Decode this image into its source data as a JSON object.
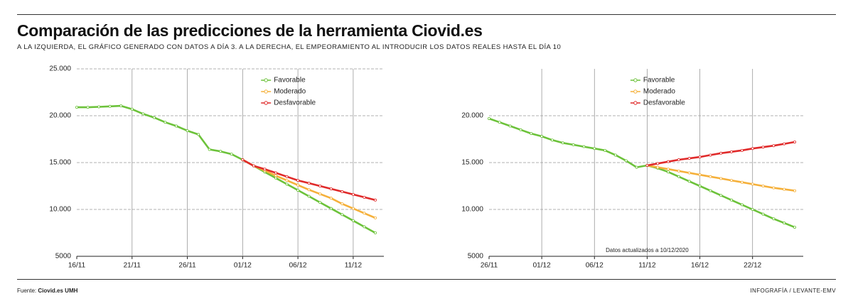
{
  "header": {
    "title": "Comparación de las predicciones de la herramienta Ciovid.es",
    "subtitle": "A LA IZQUIERDA, EL GRÁFICO GENERADO CON DATOS A DÍA 3. A LA DERECHA, EL EMPEORAMIENTO AL INTRODUCIR LOS DATOS REALES HASTA EL DÍA 10"
  },
  "footer": {
    "source_label": "Fuente:",
    "source": "Ciovid.es UMH",
    "credit": "INFOGRAFÍA / LEVANTE-EMV"
  },
  "chart_data": [
    {
      "type": "line",
      "categories": [
        "16/11",
        null,
        null,
        null,
        null,
        "21/11",
        null,
        null,
        null,
        null,
        "26/11",
        null,
        null,
        null,
        null,
        "01/12",
        null,
        null,
        null,
        null,
        "06/12",
        null,
        null,
        null,
        null,
        "11/12",
        null,
        null
      ],
      "ylim": [
        5000,
        25000
      ],
      "yticks": [
        5000,
        {
          "value": 10000,
          "label": "10.000"
        },
        {
          "value": 15000,
          "label": "15.000"
        },
        {
          "value": 20000,
          "label": "20.000"
        },
        {
          "value": 25000,
          "label": "25.000"
        }
      ],
      "grid": true,
      "legend": "upper-center",
      "series": [
        {
          "name": "Favorable",
          "color": "#6cc23a",
          "values": [
            20900,
            20900,
            20950,
            21000,
            21050,
            20700,
            20200,
            19800,
            19300,
            18900,
            18400,
            18000,
            16400,
            16200,
            15900,
            15300,
            14650,
            14000,
            13350,
            12700,
            12050,
            11400,
            10750,
            10100,
            9450,
            8800,
            8150,
            7500
          ]
        },
        {
          "name": "Moderado",
          "color": "#f5b03a",
          "values": [
            null,
            null,
            null,
            null,
            null,
            null,
            null,
            null,
            null,
            null,
            null,
            null,
            null,
            null,
            null,
            15300,
            14650,
            14150,
            13600,
            13100,
            12600,
            12100,
            11650,
            11200,
            10600,
            10100,
            9600,
            9100
          ]
        },
        {
          "name": "Desfavorable",
          "color": "#e02a2a",
          "values": [
            null,
            null,
            null,
            null,
            null,
            null,
            null,
            null,
            null,
            null,
            null,
            null,
            null,
            null,
            null,
            15300,
            14650,
            14300,
            13900,
            13500,
            13100,
            12800,
            12500,
            12200,
            11900,
            11600,
            11300,
            11000
          ]
        }
      ]
    },
    {
      "type": "line",
      "categories": [
        "26/11",
        null,
        null,
        null,
        null,
        "01/12",
        null,
        null,
        null,
        null,
        "06/12",
        null,
        null,
        null,
        null,
        "11/12",
        null,
        null,
        null,
        null,
        "16/12",
        null,
        null,
        null,
        null,
        "22/12",
        null,
        null,
        null,
        null
      ],
      "ylim": [
        5000,
        25000
      ],
      "yticks": [
        5000,
        {
          "value": 10000,
          "label": "10.000"
        },
        {
          "value": 15000,
          "label": "15.000"
        },
        {
          "value": 20000,
          "label": "20.000"
        }
      ],
      "grid": true,
      "legend": "upper-center",
      "annotation": "Datos actualizados a 10/12/2020",
      "series": [
        {
          "name": "Favorable",
          "color": "#6cc23a",
          "values": [
            19700,
            19300,
            18900,
            18500,
            18100,
            17800,
            17400,
            17100,
            16900,
            16700,
            16500,
            16300,
            15800,
            15200,
            14500,
            14700,
            14400,
            14000,
            13500,
            13000,
            12500,
            12000,
            11500,
            11000,
            10500,
            10000,
            9500,
            9000,
            8550,
            8100
          ]
        },
        {
          "name": "Moderado",
          "color": "#f5b03a",
          "values": [
            null,
            null,
            null,
            null,
            null,
            null,
            null,
            null,
            null,
            null,
            null,
            null,
            null,
            null,
            null,
            14700,
            14500,
            14300,
            14100,
            13900,
            13700,
            13500,
            13300,
            13100,
            12900,
            12700,
            12500,
            12300,
            12150,
            12000
          ]
        },
        {
          "name": "Desfavorable",
          "color": "#e02a2a",
          "values": [
            null,
            null,
            null,
            null,
            null,
            null,
            null,
            null,
            null,
            null,
            null,
            null,
            null,
            null,
            null,
            14700,
            14900,
            15100,
            15300,
            15450,
            15600,
            15800,
            16000,
            16150,
            16300,
            16500,
            16650,
            16800,
            17000,
            17200
          ]
        }
      ]
    }
  ]
}
